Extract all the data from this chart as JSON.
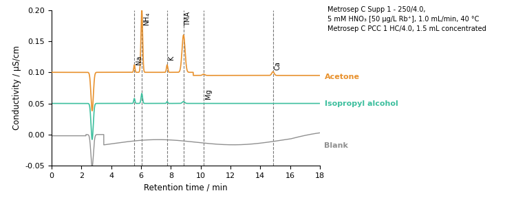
{
  "xlabel": "Retention time / min",
  "ylabel": "Conductivity / µS/cm",
  "xlim": [
    0,
    18
  ],
  "ylim": [
    -0.05,
    0.2
  ],
  "yticks": [
    -0.05,
    0.0,
    0.05,
    0.1,
    0.15,
    0.2
  ],
  "xticks": [
    0,
    2,
    4,
    6,
    8,
    10,
    12,
    14,
    16,
    18
  ],
  "annotation_text": "Metrosep C Supp 1 - 250/4.0,\n5 mM HNO₃ [50 µg/L Rb⁺], 1.0 mL/min, 40 °C\nMetrosep C PCC 1 HC/4.0, 1.5 mL concentrated",
  "colors": {
    "acetone": "#e8912d",
    "isopropyl": "#3dbf9e",
    "blank": "#909090"
  },
  "legend": {
    "acetone": "Acetone",
    "isopropyl": "Isopropyl alcohol",
    "blank": "Blank"
  },
  "peaks": {
    "Na": 5.55,
    "NH4": 6.05,
    "K": 7.75,
    "TMA": 8.85,
    "Mg": 10.2,
    "Ca": 14.85
  }
}
